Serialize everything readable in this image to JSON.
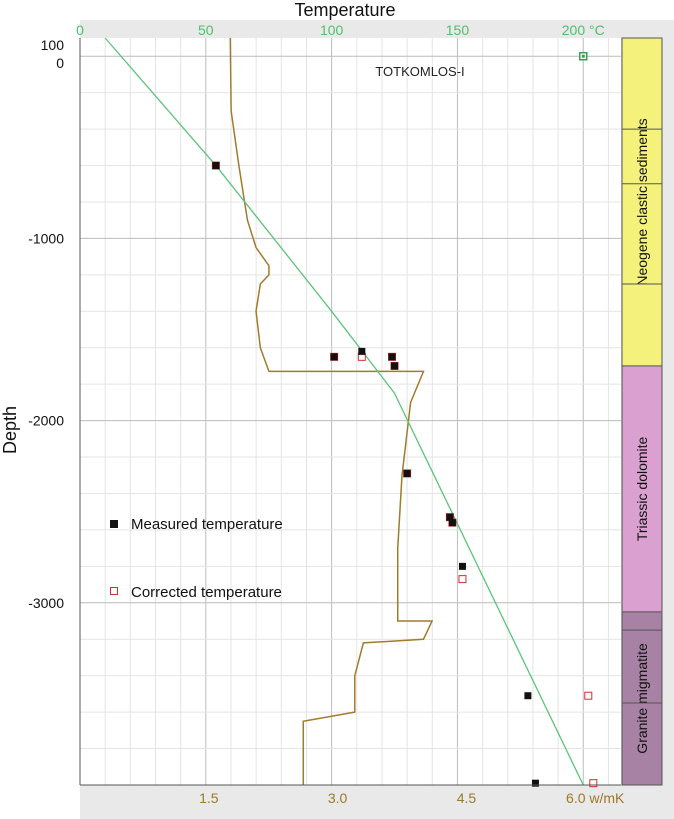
{
  "chart_data": {
    "type": "scatter",
    "title": "Temperature",
    "ylabel": "Depth",
    "annotation": "TOTKOMLOS-I",
    "top_axis": {
      "ticks": [
        0,
        50,
        100,
        150,
        200
      ],
      "tick_labels": [
        "0",
        "50",
        "100",
        "150",
        "200 °C"
      ],
      "range": [
        0,
        215
      ]
    },
    "bottom_axis": {
      "ticks": [
        1.5,
        3.0,
        4.5,
        6.0
      ],
      "tick_labels": [
        "1.5",
        "3.0",
        "4.5",
        "6.0 w/mK"
      ],
      "range": [
        0,
        6.3
      ]
    },
    "y_axis": {
      "ticks": [
        100,
        0,
        -1000,
        -2000,
        -3000
      ],
      "tick_labels": [
        "100",
        "0",
        "-1000",
        "-2000",
        "-3000"
      ],
      "range": [
        -4000,
        100
      ]
    },
    "series": [
      {
        "name": "Measured temperature",
        "marker": "filled-square",
        "color": "#111111",
        "points": [
          [
            54,
            -600
          ],
          [
            101,
            -1650
          ],
          [
            112,
            -1620
          ],
          [
            124,
            -1650
          ],
          [
            125,
            -1700
          ],
          [
            130,
            -2290
          ],
          [
            147,
            -2530
          ],
          [
            148,
            -2560
          ],
          [
            152,
            -2800
          ],
          [
            178,
            -3510
          ],
          [
            181,
            -3990
          ]
        ]
      },
      {
        "name": "Corrected temperature",
        "marker": "open-square",
        "color": "#d03030",
        "points": [
          [
            54,
            -600
          ],
          [
            101,
            -1650
          ],
          [
            112,
            -1650
          ],
          [
            124,
            -1650
          ],
          [
            125,
            -1700
          ],
          [
            130,
            -2290
          ],
          [
            147,
            -2530
          ],
          [
            148,
            -2560
          ],
          [
            152,
            -2870
          ],
          [
            202,
            -3510
          ],
          [
            204,
            -3990
          ],
          [
            200,
            0
          ]
        ]
      }
    ],
    "geotherm": {
      "color": "#5cc47a",
      "points": [
        [
          10,
          100
        ],
        [
          54,
          -600
        ],
        [
          100,
          -1400
        ],
        [
          125,
          -1850
        ],
        [
          200,
          -4000
        ]
      ]
    },
    "conductivity_profile": {
      "color": "#a07c2a",
      "points": [
        [
          1.75,
          100
        ],
        [
          1.76,
          -300
        ],
        [
          1.85,
          -600
        ],
        [
          1.95,
          -900
        ],
        [
          2.05,
          -1050
        ],
        [
          2.2,
          -1150
        ],
        [
          2.2,
          -1200
        ],
        [
          2.1,
          -1250
        ],
        [
          2.05,
          -1400
        ],
        [
          2.1,
          -1600
        ],
        [
          2.2,
          -1730
        ],
        [
          4.0,
          -1730
        ],
        [
          3.85,
          -1900
        ],
        [
          3.75,
          -2300
        ],
        [
          3.7,
          -2700
        ],
        [
          3.7,
          -3100
        ],
        [
          4.1,
          -3100
        ],
        [
          4.0,
          -3200
        ],
        [
          3.3,
          -3220
        ],
        [
          3.2,
          -3400
        ],
        [
          3.2,
          -3600
        ],
        [
          2.6,
          -3650
        ],
        [
          2.6,
          -4000
        ]
      ]
    },
    "legend": {
      "placement": "left-middle",
      "items": [
        "Measured temperature",
        "Corrected temperature"
      ]
    },
    "lithology": [
      {
        "name": "Neogene clastic sediments",
        "top": 100,
        "bottom": -1700,
        "color": "#f4f27a"
      },
      {
        "name": "Triassic dolomite",
        "top": -1700,
        "bottom": -3050,
        "color": "#d9a0d0"
      },
      {
        "name": "Granite migmatite",
        "top": -3050,
        "bottom": -4000,
        "color": "#a882a4"
      }
    ],
    "lithology_breaks": [
      -400,
      -700,
      -1250,
      -3150,
      -3550
    ],
    "grid": true
  }
}
